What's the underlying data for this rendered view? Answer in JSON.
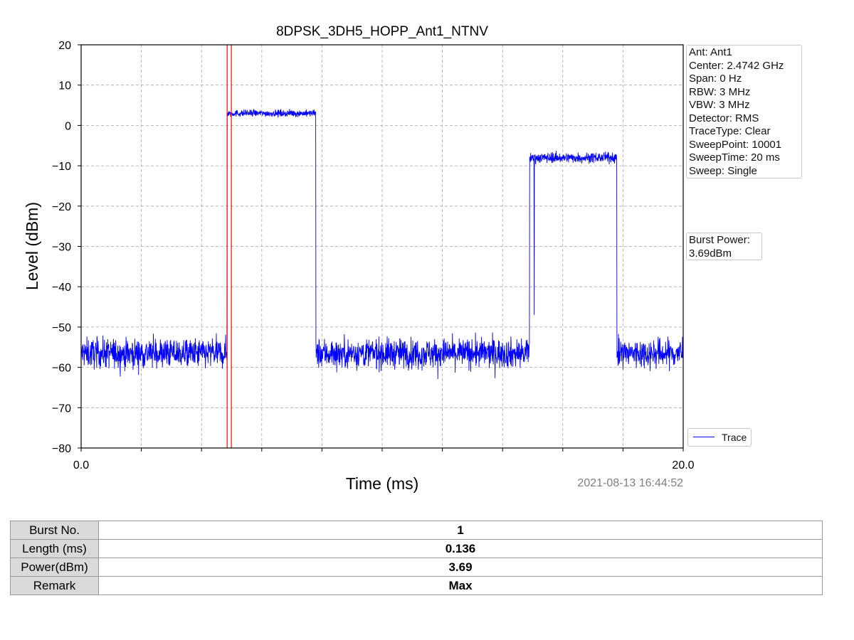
{
  "chart_data": {
    "type": "line",
    "title": "8DPSK_3DH5_HOPP_Ant1_NTNV",
    "xlabel": "Time (ms)",
    "ylabel": "Level (dBm)",
    "xlim": [
      0,
      20
    ],
    "ylim": [
      -80,
      20
    ],
    "x_tick_labels": [
      "0.0",
      "20.0"
    ],
    "x_minor_ticks": [
      0,
      2,
      4,
      6,
      8,
      10,
      12,
      14,
      16,
      18,
      20
    ],
    "y_ticks": [
      20,
      10,
      0,
      -10,
      -20,
      -30,
      -40,
      -50,
      -60,
      -70,
      -80
    ],
    "y_tick_labels": [
      "20",
      "10",
      "0",
      "−10",
      "−20",
      "−30",
      "−40",
      "−50",
      "−60",
      "−70",
      "−80"
    ],
    "grid": true,
    "legend_position": "bottom-right-outside",
    "series": [
      {
        "name": "Trace",
        "color": "#0000ff",
        "segments": [
          {
            "x_start": 0.0,
            "x_end": 4.85,
            "level": -56.5,
            "noise": 3.5
          },
          {
            "x_start": 4.85,
            "x_end": 7.8,
            "level": 3.0,
            "noise": 0.8
          },
          {
            "x_start": 7.8,
            "x_end": 14.9,
            "level": -56.5,
            "noise": 3.5
          },
          {
            "x_start": 14.9,
            "x_end": 17.8,
            "level": -8.0,
            "noise": 1.2
          },
          {
            "x_start": 17.8,
            "x_end": 20.0,
            "level": -56.5,
            "noise": 3.5
          }
        ],
        "spikes": [
          {
            "x": 15.05,
            "y": -47
          }
        ]
      }
    ],
    "markers": [
      {
        "x": 4.85,
        "color": "#ff0000"
      },
      {
        "x": 4.99,
        "color": "#ff0000"
      }
    ],
    "info_panel": [
      "Ant: Ant1",
      "Center: 2.4742 GHz",
      "Span: 0 Hz",
      "RBW: 3 MHz",
      "VBW: 3 MHz",
      "Detector: RMS",
      "TraceType: Clear",
      "SweepPoint: 10001",
      "SweepTime: 20 ms",
      "Sweep: Single"
    ],
    "burst_panel": [
      "Burst Power:",
      "3.69dBm"
    ],
    "timestamp": "2021-08-13 16:44:52"
  },
  "table": {
    "rows": [
      {
        "header": "Burst No.",
        "value": "1"
      },
      {
        "header": "Length (ms)",
        "value": "0.136"
      },
      {
        "header": "Power(dBm)",
        "value": "3.69"
      },
      {
        "header": "Remark",
        "value": "Max"
      }
    ]
  }
}
